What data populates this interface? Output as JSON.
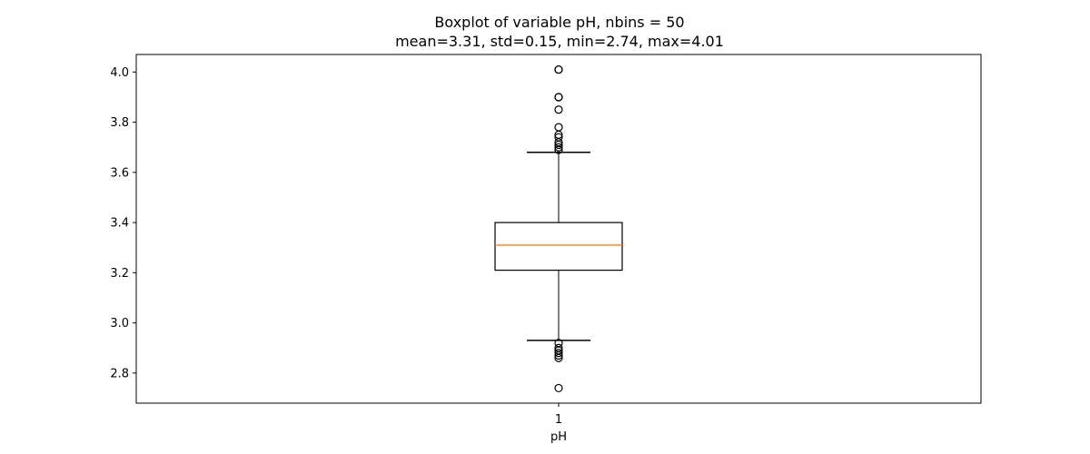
{
  "chart_data": {
    "type": "box",
    "title": "Boxplot of variable pH, nbins = 50",
    "subtitle": "mean=3.31, std=0.15, min=2.74, max=4.01",
    "xlabel": "pH",
    "ylabel": "",
    "categories": [
      "1"
    ],
    "ylim": [
      2.68,
      4.07
    ],
    "yticks": [
      2.8,
      3.0,
      3.2,
      3.4,
      3.6,
      3.8,
      4.0
    ],
    "ytick_labels": [
      "2.8",
      "3.0",
      "3.2",
      "3.4",
      "3.6",
      "3.8",
      "4.0"
    ],
    "grid": false,
    "box": {
      "q1": 3.21,
      "median": 3.31,
      "q3": 3.4,
      "whisker_low": 2.93,
      "whisker_high": 3.68
    },
    "outliers": [
      4.01,
      4.01,
      3.9,
      3.9,
      3.85,
      3.78,
      3.75,
      3.74,
      3.72,
      3.71,
      3.7,
      3.69,
      3.69,
      2.92,
      2.9,
      2.89,
      2.88,
      2.87,
      2.86,
      2.74
    ],
    "colors": {
      "box": "#000000",
      "median": "#ff7f0e",
      "outlier": "#000000"
    }
  }
}
